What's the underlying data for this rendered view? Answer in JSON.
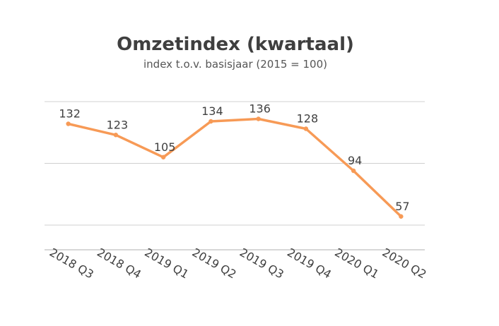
{
  "chart_data": {
    "type": "line",
    "title": "Omzetindex (kwartaal)",
    "subtitle": "index t.o.v. basisjaar (2015 = 100)",
    "categories": [
      "2018 Q3",
      "2018 Q4",
      "2019 Q1",
      "2019 Q2",
      "2019 Q3",
      "2019 Q4",
      "2020 Q1",
      "2020 Q2"
    ],
    "series": [
      {
        "values": [
          132,
          123,
          105,
          134,
          136,
          128,
          94,
          57
        ],
        "color": "#f79a56"
      }
    ],
    "xlabel": "",
    "ylabel": "",
    "ylim": [
      30,
      150
    ],
    "y_gridlines": [
      50,
      100,
      150
    ],
    "y_axis_labels_shown": false,
    "grid": true,
    "legend": "none",
    "data_labels": true
  }
}
